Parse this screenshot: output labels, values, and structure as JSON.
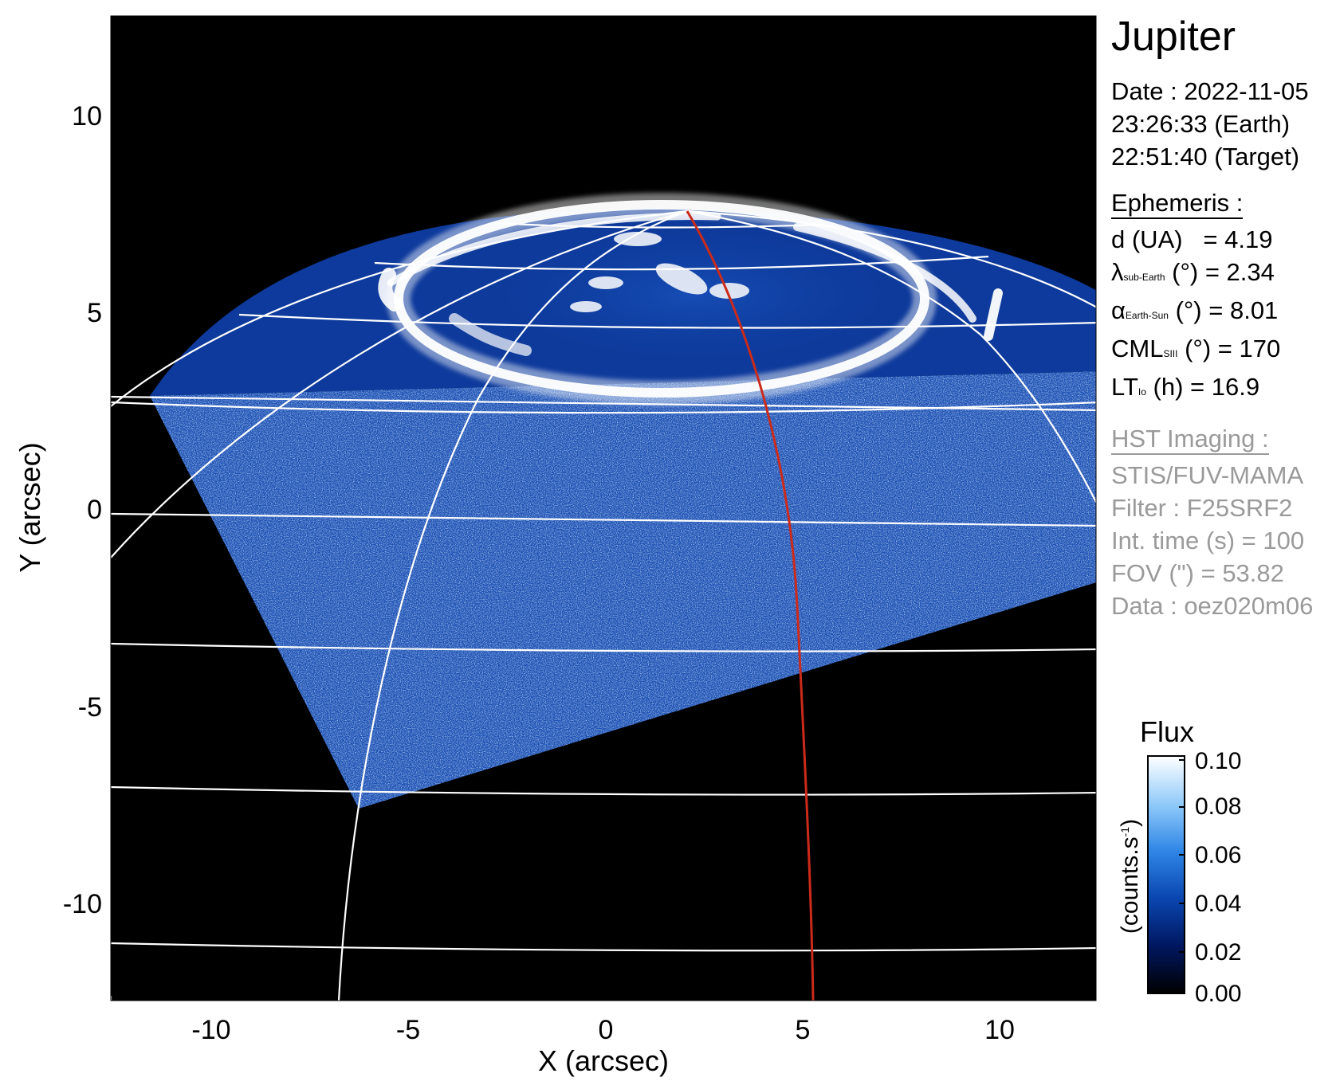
{
  "title": "Jupiter",
  "observation": {
    "date_line": "Date : 2022-11-05",
    "earth_time": "23:26:33 (Earth)",
    "target_time": "22:51:40 (Target)"
  },
  "ephemeris": {
    "header": "Ephemeris :",
    "distance": {
      "label": "d (UA)",
      "value": "= 4.19"
    },
    "sub_earth_lat": {
      "symbol": "λ",
      "subscript": "sub-Earth",
      "unit": "(°)",
      "value": "= 2.34"
    },
    "phase_angle": {
      "symbol": "α",
      "subscript": "Earth-Sun",
      "unit": "(°)",
      "value": "= 8.01"
    },
    "cml": {
      "symbol": "CML",
      "subscript": "SIII",
      "unit": "(°)",
      "value": "= 170"
    },
    "local_time": {
      "symbol": "LT",
      "subscript": "Io",
      "unit": "(h)",
      "value": "= 16.9"
    }
  },
  "hst_imaging": {
    "header": "HST Imaging :",
    "instrument": "STIS/FUV-MAMA",
    "filter": "Filter : F25SRF2",
    "int_time": "Int. time (s) = 100",
    "fov": "FOV (\") = 53.82",
    "data_id": "Data : oez020m06"
  },
  "image_axes": {
    "x_label": "X (arcsec)",
    "y_label": "Y (arcsec)",
    "x_ticks": [
      "-10",
      "-5",
      "0",
      "5",
      "10"
    ],
    "y_ticks": [
      "10",
      "5",
      "0",
      "-5",
      "-10"
    ]
  },
  "colorbar": {
    "title": "Flux",
    "unit_base": "(counts.s",
    "unit_sup": "-1",
    "unit_close": ")",
    "ticks": [
      "0.10",
      "0.08",
      "0.06",
      "0.04",
      "0.02",
      "0.00"
    ],
    "gradient": [
      "#000000",
      "#001760",
      "#0a46b0",
      "#2f86e6",
      "#92cbfa",
      "#ffffff"
    ]
  },
  "colors": {
    "background": "#000000",
    "grid": "#ffffff",
    "reference_meridian": "#cc2a1a"
  }
}
